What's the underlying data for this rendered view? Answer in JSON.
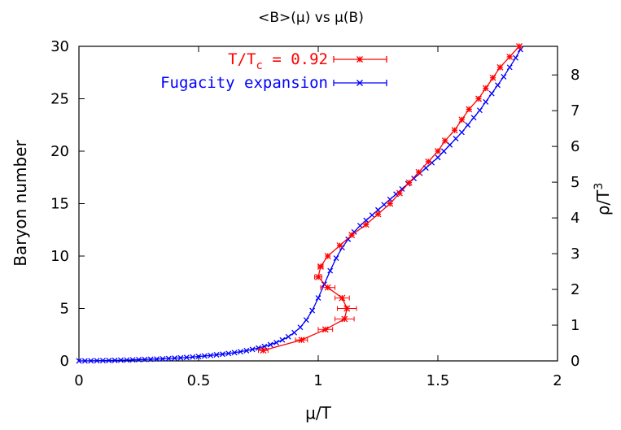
{
  "chart_data": {
    "type": "scatter",
    "title": "<B>(μ) vs  μ(B)",
    "xlabel": "μ/T",
    "ylabel": "Baryon number",
    "y2label": "ρ/T",
    "y2label_sup": "3",
    "xlim": [
      0,
      2
    ],
    "ylim": [
      0,
      30
    ],
    "y2lim": [
      0,
      8.8
    ],
    "xticks": [
      "0",
      "0.5",
      "1",
      "1.5",
      "2"
    ],
    "xtick_values": [
      0,
      0.5,
      1,
      1.5,
      2
    ],
    "yticks": [
      "0",
      "5",
      "10",
      "15",
      "20",
      "25",
      "30"
    ],
    "ytick_values": [
      0,
      5,
      10,
      15,
      20,
      25,
      30
    ],
    "y2ticks": [
      "0",
      "1",
      "2",
      "3",
      "4",
      "5",
      "6",
      "7",
      "8"
    ],
    "y2tick_values": [
      0,
      1,
      2,
      3,
      4,
      5,
      6,
      7,
      8
    ],
    "grid": false,
    "legend_position": "top",
    "series": [
      {
        "name_main": "T/T",
        "name_sub": "c",
        "name_rest": " = 0.92",
        "color": "#ff0000",
        "marker": "star",
        "points": [
          {
            "x": 0.77,
            "y": 1.0,
            "xerr": 0.02
          },
          {
            "x": 0.93,
            "y": 2.0,
            "xerr": 0.025
          },
          {
            "x": 1.03,
            "y": 3.0,
            "xerr": 0.03
          },
          {
            "x": 1.11,
            "y": 4.0,
            "xerr": 0.04
          },
          {
            "x": 1.12,
            "y": 5.0,
            "xerr": 0.04
          },
          {
            "x": 1.1,
            "y": 6.0,
            "xerr": 0.03
          },
          {
            "x": 1.04,
            "y": 7.0,
            "xerr": 0.03
          },
          {
            "x": 1.0,
            "y": 8.0,
            "xerr": 0.015
          },
          {
            "x": 1.01,
            "y": 9.0,
            "xerr": 0.01
          },
          {
            "x": 1.04,
            "y": 10.0,
            "xerr": 0.005
          },
          {
            "x": 1.09,
            "y": 11.0,
            "xerr": 0.005
          },
          {
            "x": 1.14,
            "y": 12.0,
            "xerr": 0.005
          },
          {
            "x": 1.2,
            "y": 13.0,
            "xerr": 0.005
          },
          {
            "x": 1.25,
            "y": 14.0,
            "xerr": 0.005
          },
          {
            "x": 1.3,
            "y": 15.0,
            "xerr": 0.005
          },
          {
            "x": 1.34,
            "y": 16.0,
            "xerr": 0.005
          },
          {
            "x": 1.38,
            "y": 17.0,
            "xerr": 0.005
          },
          {
            "x": 1.42,
            "y": 18.0,
            "xerr": 0.005
          },
          {
            "x": 1.46,
            "y": 19.0,
            "xerr": 0.005
          },
          {
            "x": 1.5,
            "y": 20.0,
            "xerr": 0.005
          },
          {
            "x": 1.53,
            "y": 21.0,
            "xerr": 0.005
          },
          {
            "x": 1.57,
            "y": 22.0,
            "xerr": 0.005
          },
          {
            "x": 1.6,
            "y": 23.0,
            "xerr": 0.005
          },
          {
            "x": 1.63,
            "y": 24.0,
            "xerr": 0.005
          },
          {
            "x": 1.67,
            "y": 25.0,
            "xerr": 0.005
          },
          {
            "x": 1.7,
            "y": 26.0,
            "xerr": 0.005
          },
          {
            "x": 1.73,
            "y": 27.0,
            "xerr": 0.005
          },
          {
            "x": 1.76,
            "y": 28.0,
            "xerr": 0.005
          },
          {
            "x": 1.8,
            "y": 29.0,
            "xerr": 0.005
          },
          {
            "x": 1.84,
            "y": 30.0,
            "xerr": 0.005
          }
        ]
      },
      {
        "name": "Fugacity expansion",
        "color": "#0000ff",
        "marker": "cross",
        "x": [
          0.0,
          0.025,
          0.05,
          0.075,
          0.1,
          0.125,
          0.15,
          0.175,
          0.2,
          0.225,
          0.25,
          0.275,
          0.3,
          0.325,
          0.35,
          0.375,
          0.4,
          0.425,
          0.45,
          0.475,
          0.5,
          0.525,
          0.55,
          0.575,
          0.6,
          0.625,
          0.65,
          0.675,
          0.7,
          0.725,
          0.75,
          0.775,
          0.8,
          0.825,
          0.85,
          0.875,
          0.9,
          0.925,
          0.95,
          0.975,
          1.0,
          1.025,
          1.05,
          1.075,
          1.1,
          1.125,
          1.15,
          1.175,
          1.2,
          1.225,
          1.25,
          1.275,
          1.3,
          1.325,
          1.35,
          1.375,
          1.4,
          1.425,
          1.45,
          1.475,
          1.5,
          1.525,
          1.55,
          1.575,
          1.6,
          1.625,
          1.65,
          1.675,
          1.7,
          1.725,
          1.75,
          1.775,
          1.8,
          1.825,
          1.845
        ],
        "y": [
          0.0,
          0.0,
          0.01,
          0.02,
          0.03,
          0.04,
          0.05,
          0.07,
          0.08,
          0.1,
          0.12,
          0.14,
          0.16,
          0.18,
          0.2,
          0.23,
          0.26,
          0.29,
          0.33,
          0.37,
          0.42,
          0.47,
          0.52,
          0.58,
          0.64,
          0.71,
          0.79,
          0.88,
          0.98,
          1.1,
          1.23,
          1.38,
          1.55,
          1.75,
          2.0,
          2.3,
          2.7,
          3.2,
          3.9,
          4.8,
          6.0,
          7.3,
          8.6,
          9.8,
          10.8,
          11.6,
          12.3,
          12.9,
          13.4,
          13.9,
          14.4,
          14.9,
          15.4,
          15.9,
          16.4,
          16.9,
          17.4,
          17.9,
          18.4,
          18.9,
          19.4,
          20.0,
          20.6,
          21.2,
          21.8,
          22.5,
          23.2,
          23.9,
          24.7,
          25.5,
          26.3,
          27.1,
          28.0,
          28.9,
          29.7
        ]
      }
    ]
  }
}
